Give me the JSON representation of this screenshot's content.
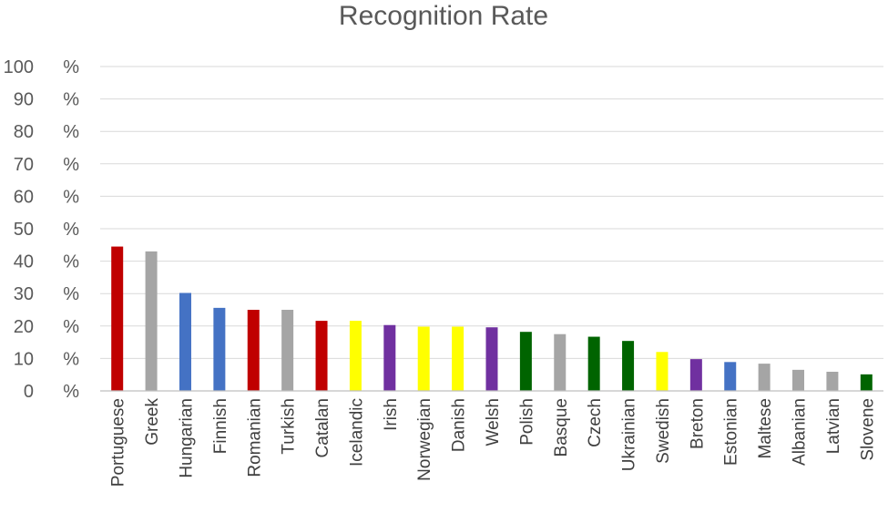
{
  "chart_data": {
    "type": "bar",
    "title": "Recognition Rate",
    "xlabel": "",
    "ylabel": "",
    "ylim": [
      0,
      100
    ],
    "grid": true,
    "y_ticks": [
      {
        "number": "0",
        "unit": "%",
        "value": 0
      },
      {
        "number": "10",
        "unit": "%",
        "value": 10
      },
      {
        "number": "20",
        "unit": "%",
        "value": 20
      },
      {
        "number": "30",
        "unit": "%",
        "value": 30
      },
      {
        "number": "40",
        "unit": "%",
        "value": 40
      },
      {
        "number": "50",
        "unit": "%",
        "value": 50
      },
      {
        "number": "60",
        "unit": "%",
        "value": 60
      },
      {
        "number": "70",
        "unit": "%",
        "value": 70
      },
      {
        "number": "80",
        "unit": "%",
        "value": 80
      },
      {
        "number": "90",
        "unit": "%",
        "value": 90
      },
      {
        "number": "100",
        "unit": "%",
        "value": 100
      }
    ],
    "categories": [
      "Portuguese",
      "Greek",
      "Hungarian",
      "Finnish",
      "Romanian",
      "Turkish",
      "Catalan",
      "Icelandic",
      "Irish",
      "Norwegian",
      "Danish",
      "Welsh",
      "Polish",
      "Basque",
      "Czech",
      "Ukrainian",
      "Swedish",
      "Breton",
      "Estonian",
      "Maltese",
      "Albanian",
      "Latvian",
      "Slovene"
    ],
    "values": [
      44.5,
      43,
      30.2,
      25.6,
      25,
      25,
      21.6,
      21.6,
      20.3,
      19.8,
      19.8,
      19.6,
      18.2,
      17.5,
      16.7,
      15.4,
      12,
      9.8,
      8.9,
      8.4,
      6.5,
      5.9,
      5.1
    ],
    "colors": [
      "#c00000",
      "#a5a5a5",
      "#4472c4",
      "#4472c4",
      "#c00000",
      "#a5a5a5",
      "#c00000",
      "#ffff00",
      "#7030a0",
      "#ffff00",
      "#ffff00",
      "#7030a0",
      "#006400",
      "#a5a5a5",
      "#006400",
      "#006400",
      "#ffff00",
      "#7030a0",
      "#4472c4",
      "#a5a5a5",
      "#a5a5a5",
      "#a5a5a5",
      "#006400"
    ]
  }
}
